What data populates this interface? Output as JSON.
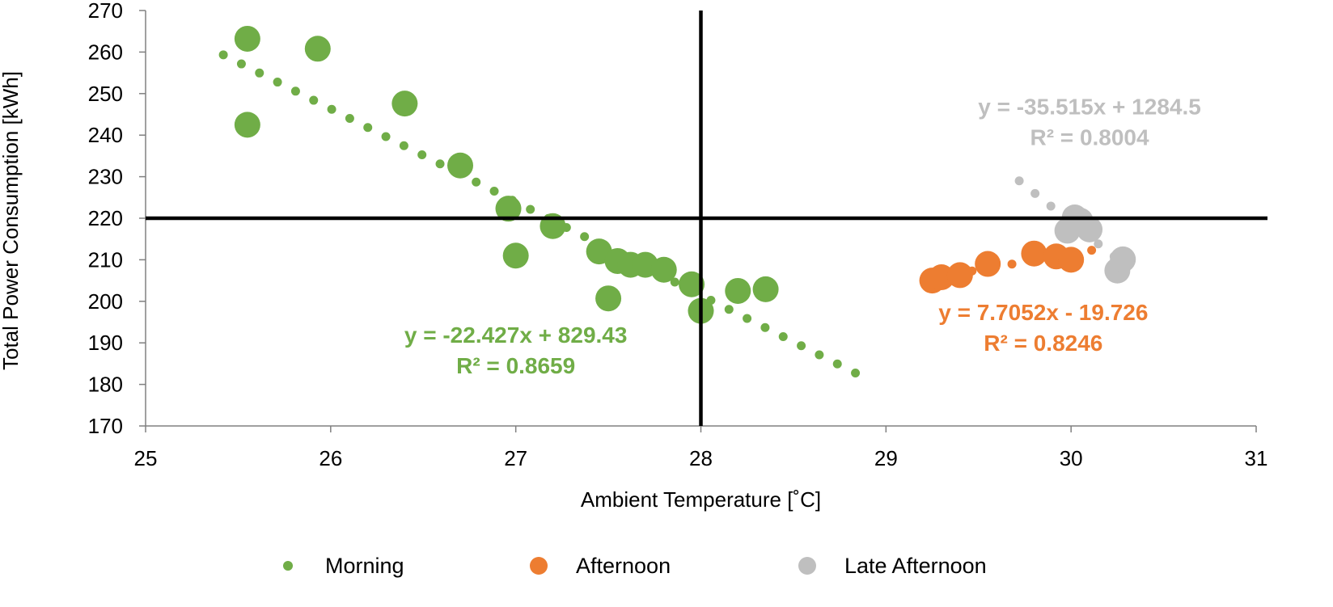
{
  "chart_data": {
    "type": "scatter",
    "title": "",
    "xlabel": "Ambient Temperature [˚C]",
    "ylabel": "Total Power Consumption [kWh]",
    "xlim": [
      25,
      31
    ],
    "ylim": [
      170,
      270
    ],
    "xticks": [
      "25",
      "26",
      "27",
      "28",
      "29",
      "30",
      "31"
    ],
    "yticks": [
      "170",
      "180",
      "190",
      "200",
      "210",
      "220",
      "230",
      "240",
      "250",
      "260",
      "270"
    ],
    "reference_lines": {
      "x": 28,
      "y": 220
    },
    "legend_position": "bottom",
    "series": [
      {
        "name": "Morning",
        "color": "#70AD47",
        "points": [
          [
            25.55,
            263.2
          ],
          [
            25.93,
            260.8
          ],
          [
            25.55,
            242.5
          ],
          [
            26.4,
            247.6
          ],
          [
            26.7,
            232.7
          ],
          [
            26.96,
            222.3
          ],
          [
            27.0,
            211.0
          ],
          [
            27.2,
            218.1
          ],
          [
            27.45,
            212.0
          ],
          [
            27.55,
            209.7
          ],
          [
            27.62,
            208.8
          ],
          [
            27.7,
            208.8
          ],
          [
            27.8,
            207.6
          ],
          [
            27.5,
            200.7
          ],
          [
            27.95,
            204.1
          ],
          [
            28.0,
            197.7
          ],
          [
            28.2,
            202.5
          ],
          [
            28.35,
            202.9
          ]
        ],
        "trendline": {
          "slope": -22.427,
          "intercept": 829.43,
          "x_range": [
            25.42,
            28.93
          ],
          "equation": "y = -22.427x + 829.43",
          "r2": "R² = 0.8659",
          "label_at": [
            27.0,
            190.0
          ]
        }
      },
      {
        "name": "Afternoon",
        "color": "#ED7D31",
        "points": [
          [
            29.25,
            205.0
          ],
          [
            29.3,
            205.8
          ],
          [
            29.4,
            206.3
          ],
          [
            29.55,
            209.0
          ],
          [
            29.8,
            211.5
          ],
          [
            29.92,
            210.8
          ],
          [
            30.0,
            210.0
          ]
        ],
        "trendline": {
          "slope": 7.7052,
          "intercept": -19.726,
          "x_range": [
            29.25,
            30.2
          ],
          "equation": "y = 7.7052x - 19.726",
          "r2": "R² = 0.8246",
          "label_at": [
            29.85,
            195.5
          ]
        }
      },
      {
        "name": "Late Afternoon",
        "color": "#BFBFBF",
        "points": [
          [
            29.98,
            217.0
          ],
          [
            30.02,
            220.2
          ],
          [
            30.05,
            219.4
          ],
          [
            30.1,
            217.3
          ],
          [
            30.25,
            207.4
          ],
          [
            30.28,
            210.1
          ]
        ],
        "trendline": {
          "slope": -35.515,
          "intercept": 1284.5,
          "x_range": [
            29.72,
            30.3
          ],
          "equation": "y = -35.515x + 1284.5",
          "r2": "R² = 0.8004",
          "label_at": [
            30.1,
            245.0
          ]
        }
      }
    ]
  }
}
